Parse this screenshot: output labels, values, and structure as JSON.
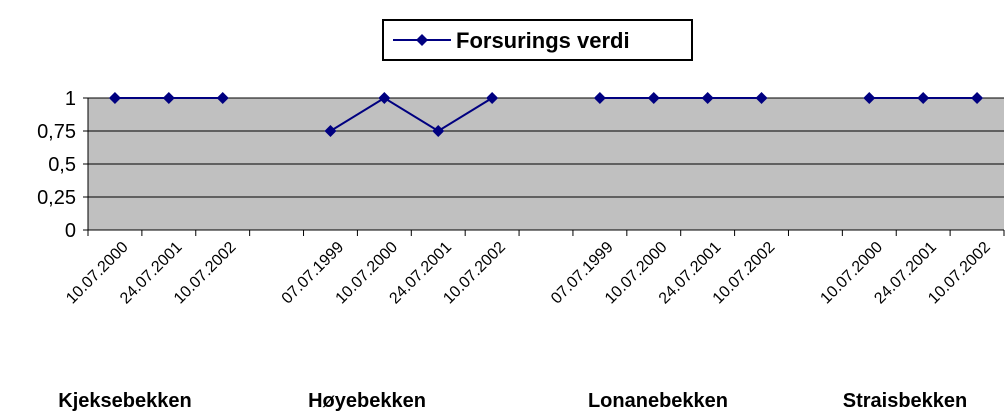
{
  "chart_data": {
    "type": "line",
    "categories": [
      "10.07.2000",
      "24.07.2001",
      "10.07.2002",
      null,
      "07.07.1999",
      "10.07.2000",
      "24.07.2001",
      "10.07.2002",
      null,
      "07.07.1999",
      "10.07.2000",
      "24.07.2001",
      "10.07.2002",
      null,
      "10.07.2000",
      "24.07.2001",
      "10.07.2002"
    ],
    "series": [
      {
        "name": "Forsurings verdi",
        "color": "#000080",
        "values": [
          1,
          1,
          1,
          null,
          0.75,
          1,
          0.75,
          1,
          null,
          1,
          1,
          1,
          1,
          null,
          1,
          1,
          1
        ]
      }
    ],
    "groups": [
      "Kjeksebekken",
      "Høyebekken",
      "Lonanebekken",
      "Straisbekken"
    ],
    "ylim": [
      0,
      1
    ],
    "yticks": [
      0,
      {
        "value": 0.25,
        "label": "0,25"
      },
      {
        "value": 0.5,
        "label": "0,5"
      },
      {
        "value": 0.75,
        "label": "0,75"
      },
      1
    ],
    "grid": true,
    "plot_background": "#c0c0c0",
    "legend": "top"
  }
}
